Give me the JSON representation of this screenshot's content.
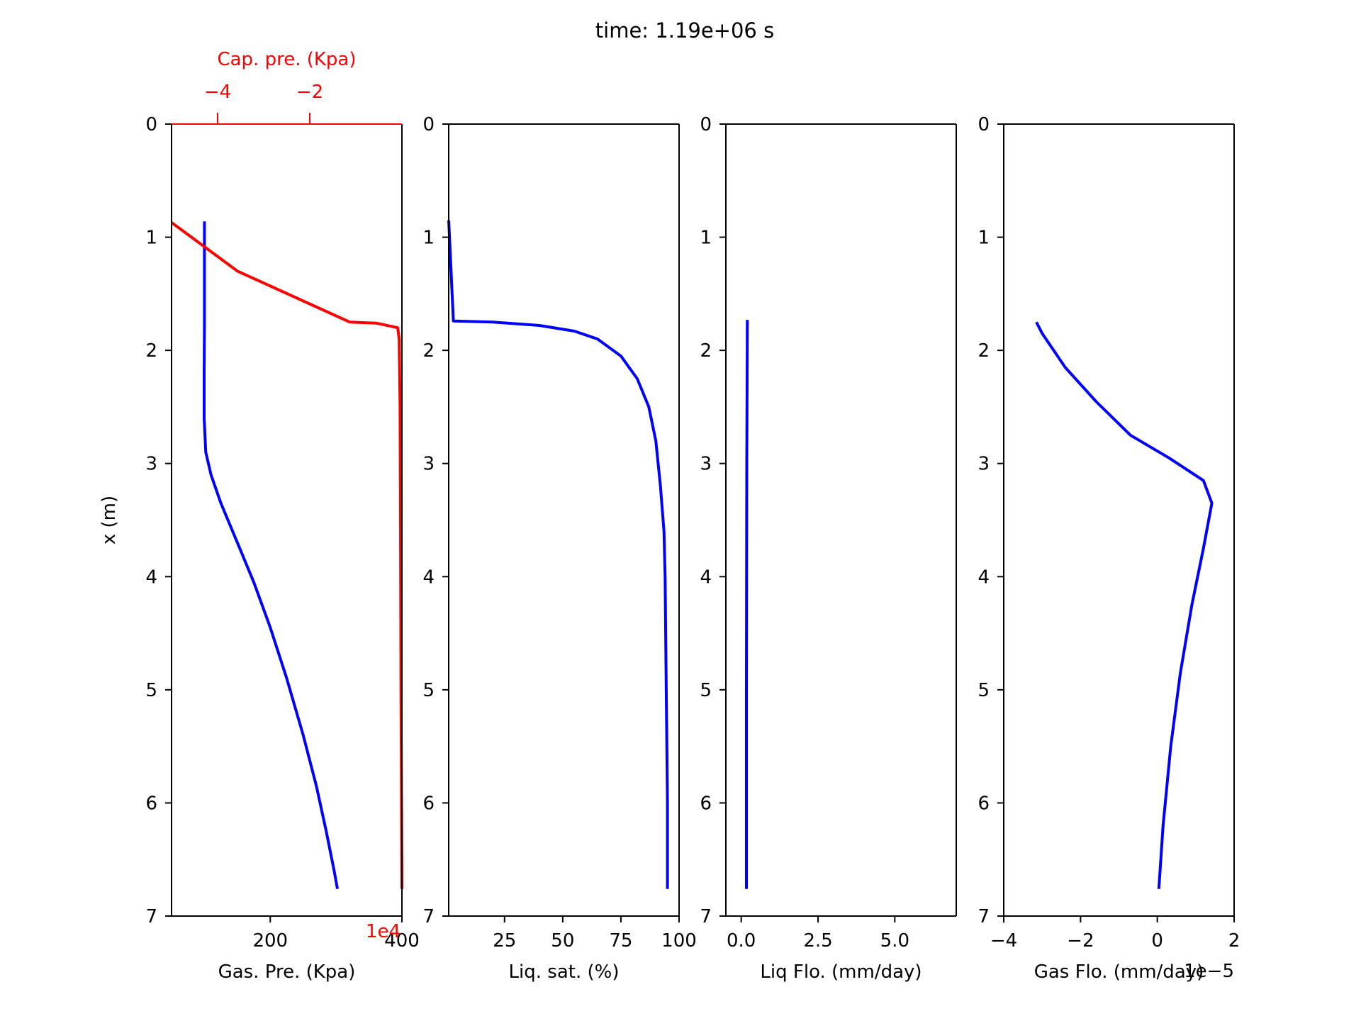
{
  "title": "time: 1.19e+06 s",
  "colors": {
    "axis": "#000000",
    "blue": "#0000ff",
    "red": "#ff0000"
  },
  "chart_data": [
    {
      "type": "line",
      "xlabel": "Gas. Pre. (Kpa)",
      "ylabel": "x (m)",
      "xlim": [
        50,
        400
      ],
      "ylim": [
        7,
        0
      ],
      "yticks": [
        0,
        1,
        2,
        3,
        4,
        5,
        6,
        7
      ],
      "xticks": [
        200,
        400
      ],
      "xtick_labels": [
        "200",
        "400"
      ],
      "series": [
        {
          "color": "#0000ff",
          "axis": "bottom",
          "points": [
            [
              100,
              0.86
            ],
            [
              100,
              1.5
            ],
            [
              100,
              1.8
            ],
            [
              99.5,
              2.2
            ],
            [
              99.5,
              2.6
            ],
            [
              102,
              2.9
            ],
            [
              110,
              3.1
            ],
            [
              125,
              3.35
            ],
            [
              150,
              3.7
            ],
            [
              175,
              4.05
            ],
            [
              200,
              4.45
            ],
            [
              225,
              4.9
            ],
            [
              250,
              5.4
            ],
            [
              270,
              5.85
            ],
            [
              285,
              6.25
            ],
            [
              297,
              6.6
            ],
            [
              302,
              6.76
            ]
          ]
        },
        {
          "color": "#ff0000",
          "axis": "top",
          "points": [
            [
              -5.0,
              0.87
            ],
            [
              -3.57,
              1.3
            ],
            [
              -1.13,
              1.75
            ],
            [
              -0.55,
              1.76
            ],
            [
              -0.09,
              1.8
            ],
            [
              -0.06,
              1.9
            ],
            [
              -0.04,
              2.5
            ],
            [
              -0.03,
              3.5
            ],
            [
              -0.02,
              5.0
            ],
            [
              -0.01,
              6.0
            ],
            [
              0.0,
              6.76
            ]
          ]
        }
      ],
      "top_axis": {
        "label": "Cap. pre. (Kpa)",
        "xlim": [
          -5,
          0
        ],
        "xticks": [
          -4,
          -2
        ],
        "xtick_labels": [
          "−4",
          "−2"
        ],
        "offset_text": "1e4"
      }
    },
    {
      "type": "line",
      "xlabel": "Liq. sat. (%)",
      "xlim": [
        1,
        100
      ],
      "ylim": [
        7,
        0
      ],
      "yticks": [
        0,
        1,
        2,
        3,
        4,
        5,
        6,
        7
      ],
      "xticks": [
        25,
        50,
        75,
        100
      ],
      "xtick_labels": [
        "25",
        "50",
        "75",
        "100"
      ],
      "series": [
        {
          "color": "#0000ff",
          "points": [
            [
              1,
              0.85
            ],
            [
              3,
              1.74
            ],
            [
              20,
              1.75
            ],
            [
              40,
              1.78
            ],
            [
              55,
              1.83
            ],
            [
              65,
              1.9
            ],
            [
              75,
              2.05
            ],
            [
              82,
              2.25
            ],
            [
              87,
              2.5
            ],
            [
              90,
              2.8
            ],
            [
              92,
              3.2
            ],
            [
              93.5,
              3.6
            ],
            [
              94,
              4.0
            ],
            [
              94.5,
              5.0
            ],
            [
              95,
              6.0
            ],
            [
              95,
              6.76
            ]
          ]
        }
      ]
    },
    {
      "type": "line",
      "xlabel": "Liq Flo. (mm/day)",
      "xlim": [
        -0.5,
        7
      ],
      "ylim": [
        7,
        0
      ],
      "yticks": [
        0,
        1,
        2,
        3,
        4,
        5,
        6,
        7
      ],
      "xticks": [
        0,
        2.5,
        5
      ],
      "xtick_labels": [
        "0.0",
        "2.5",
        "5.0"
      ],
      "series": [
        {
          "color": "#0000ff",
          "points": [
            [
              0.2,
              1.73
            ],
            [
              0.18,
              3.0
            ],
            [
              0.17,
              5.0
            ],
            [
              0.17,
              6.76
            ]
          ]
        }
      ]
    },
    {
      "type": "line",
      "xlabel": "Gas Flo. (mm/day)",
      "xlim": [
        -4,
        2
      ],
      "ylim": [
        7,
        0
      ],
      "yticks": [
        0,
        1,
        2,
        3,
        4,
        5,
        6,
        7
      ],
      "xticks": [
        -4,
        -2,
        0,
        2
      ],
      "xtick_labels": [
        "−4",
        "−2",
        "0",
        "2"
      ],
      "offset_text": "1e−5",
      "series": [
        {
          "color": "#0000ff",
          "points": [
            [
              -3.15,
              1.75
            ],
            [
              -3.0,
              1.85
            ],
            [
              -2.4,
              2.15
            ],
            [
              -1.6,
              2.45
            ],
            [
              -0.7,
              2.75
            ],
            [
              0.3,
              2.95
            ],
            [
              1.2,
              3.15
            ],
            [
              1.42,
              3.35
            ],
            [
              1.2,
              3.75
            ],
            [
              0.9,
              4.25
            ],
            [
              0.6,
              4.85
            ],
            [
              0.35,
              5.5
            ],
            [
              0.15,
              6.2
            ],
            [
              0.04,
              6.76
            ]
          ]
        }
      ]
    }
  ]
}
